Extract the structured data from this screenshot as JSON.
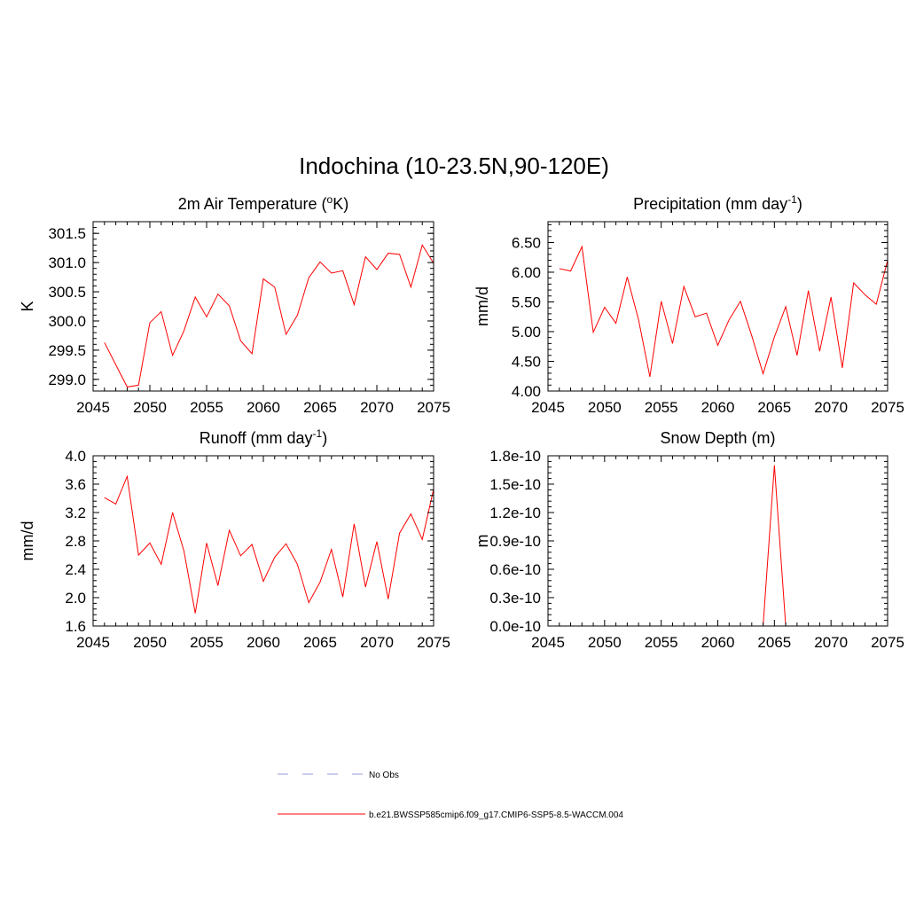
{
  "title": "Indochina (10-23.5N,90-120E)",
  "colors": {
    "model": "#ff0000",
    "obs": "#9999dd",
    "axis": "#000000"
  },
  "legend": {
    "obs_label": "No Obs",
    "model_label": "b.e21.BWSSP585cmip6.f09_g17.CMIP6-SSP5-8.5-WACCM.004"
  },
  "chart_data": [
    {
      "type": "line",
      "title": "2m Air Temperature (",
      "title_sup": "o",
      "title_suffix": "K)",
      "xlabel": "",
      "ylabel": "K",
      "xlim": [
        2045,
        2075
      ],
      "ylim": [
        298.8,
        301.7
      ],
      "xticks": [
        2045,
        2050,
        2055,
        2060,
        2065,
        2070,
        2075
      ],
      "yticks": [
        299.0,
        299.5,
        300.0,
        300.5,
        301.0,
        301.5
      ],
      "ytick_labels": [
        "299.0",
        "299.5",
        "300.0",
        "300.5",
        "301.0",
        "301.5"
      ],
      "series": [
        {
          "name": "b.e21.BWSSP585cmip6.f09_g17.CMIP6-SSP5-8.5-WACCM.004",
          "x": [
            2046,
            2047,
            2048,
            2049,
            2050,
            2051,
            2052,
            2053,
            2054,
            2055,
            2056,
            2057,
            2058,
            2059,
            2060,
            2061,
            2062,
            2063,
            2064,
            2065,
            2066,
            2067,
            2068,
            2069,
            2070,
            2071,
            2072,
            2073,
            2074,
            2075
          ],
          "values": [
            299.63,
            299.25,
            298.87,
            298.9,
            299.97,
            300.16,
            299.41,
            299.83,
            300.41,
            300.07,
            300.46,
            300.26,
            299.66,
            299.44,
            300.72,
            300.58,
            299.77,
            300.1,
            300.74,
            301.01,
            300.82,
            300.86,
            300.28,
            301.1,
            300.88,
            301.16,
            301.14,
            300.58,
            301.3,
            300.99
          ]
        }
      ]
    },
    {
      "type": "line",
      "title": "Precipitation (mm day",
      "title_sup": "-1",
      "title_suffix": ")",
      "xlabel": "",
      "ylabel": "mm/d",
      "xlim": [
        2045,
        2075
      ],
      "ylim": [
        4.0,
        6.85
      ],
      "xticks": [
        2045,
        2050,
        2055,
        2060,
        2065,
        2070,
        2075
      ],
      "yticks": [
        4.0,
        4.5,
        5.0,
        5.5,
        6.0,
        6.5
      ],
      "ytick_labels": [
        "4.00",
        "4.50",
        "5.00",
        "5.50",
        "6.00",
        "6.50"
      ],
      "series": [
        {
          "name": "b.e21.BWSSP585cmip6.f09_g17.CMIP6-SSP5-8.5-WACCM.004",
          "x": [
            2046,
            2047,
            2048,
            2049,
            2050,
            2051,
            2052,
            2053,
            2054,
            2055,
            2056,
            2057,
            2058,
            2059,
            2060,
            2061,
            2062,
            2063,
            2064,
            2065,
            2066,
            2067,
            2068,
            2069,
            2070,
            2071,
            2072,
            2073,
            2074,
            2075
          ],
          "values": [
            6.06,
            6.02,
            6.43,
            4.99,
            5.41,
            5.14,
            5.92,
            5.2,
            4.24,
            5.51,
            4.8,
            5.76,
            5.25,
            5.31,
            4.77,
            5.2,
            5.51,
            4.93,
            4.29,
            4.91,
            5.42,
            4.6,
            5.69,
            4.67,
            5.58,
            4.39,
            5.82,
            5.62,
            5.46,
            6.2
          ]
        }
      ]
    },
    {
      "type": "line",
      "title": "Runoff (mm day",
      "title_sup": "-1",
      "title_suffix": ")",
      "xlabel": "",
      "ylabel": "mm/d",
      "xlim": [
        2045,
        2075
      ],
      "ylim": [
        1.6,
        4.0
      ],
      "xticks": [
        2045,
        2050,
        2055,
        2060,
        2065,
        2070,
        2075
      ],
      "yticks": [
        1.6,
        2.0,
        2.4,
        2.8,
        3.2,
        3.6,
        4.0
      ],
      "ytick_labels": [
        "1.6",
        "2.0",
        "2.4",
        "2.8",
        "3.2",
        "3.6",
        "4.0"
      ],
      "series": [
        {
          "name": "b.e21.BWSSP585cmip6.f09_g17.CMIP6-SSP5-8.5-WACCM.004",
          "x": [
            2046,
            2047,
            2048,
            2049,
            2050,
            2051,
            2052,
            2053,
            2054,
            2055,
            2056,
            2057,
            2058,
            2059,
            2060,
            2061,
            2062,
            2063,
            2064,
            2065,
            2066,
            2067,
            2068,
            2069,
            2070,
            2071,
            2072,
            2073,
            2074,
            2075
          ],
          "values": [
            3.41,
            3.32,
            3.71,
            2.6,
            2.77,
            2.47,
            3.2,
            2.66,
            1.78,
            2.77,
            2.17,
            2.95,
            2.59,
            2.75,
            2.23,
            2.57,
            2.76,
            2.47,
            1.93,
            2.22,
            2.68,
            2.01,
            3.04,
            2.15,
            2.79,
            1.98,
            2.91,
            3.18,
            2.82,
            3.53
          ]
        }
      ]
    },
    {
      "type": "line",
      "title": "Snow Depth (m)",
      "title_sup": "",
      "title_suffix": "",
      "xlabel": "",
      "ylabel": "m",
      "xlim": [
        2045,
        2075
      ],
      "ylim": [
        0,
        1.8e-10
      ],
      "xticks": [
        2045,
        2050,
        2055,
        2060,
        2065,
        2070,
        2075
      ],
      "yticks": [
        0,
        3e-11,
        6e-11,
        9e-11,
        1.2e-10,
        1.5e-10,
        1.8e-10
      ],
      "ytick_labels": [
        "0.0e-10",
        "0.3e-10",
        "0.6e-10",
        "0.9e-10",
        "1.2e-10",
        "1.5e-10",
        "1.8e-10"
      ],
      "series": [
        {
          "name": "b.e21.BWSSP585cmip6.f09_g17.CMIP6-SSP5-8.5-WACCM.004",
          "x": [
            2046,
            2047,
            2048,
            2049,
            2050,
            2051,
            2052,
            2053,
            2054,
            2055,
            2056,
            2057,
            2058,
            2059,
            2060,
            2061,
            2062,
            2063,
            2064,
            2065,
            2066,
            2067,
            2068,
            2069,
            2070,
            2071,
            2072,
            2073,
            2074,
            2075
          ],
          "values": [
            0,
            0,
            0,
            0,
            0,
            0,
            0,
            0,
            0,
            0,
            0,
            0,
            0,
            0,
            0,
            0,
            0,
            0,
            0,
            1.7e-10,
            0,
            0,
            0,
            0,
            0,
            0,
            0,
            0,
            0,
            0
          ]
        }
      ]
    }
  ]
}
